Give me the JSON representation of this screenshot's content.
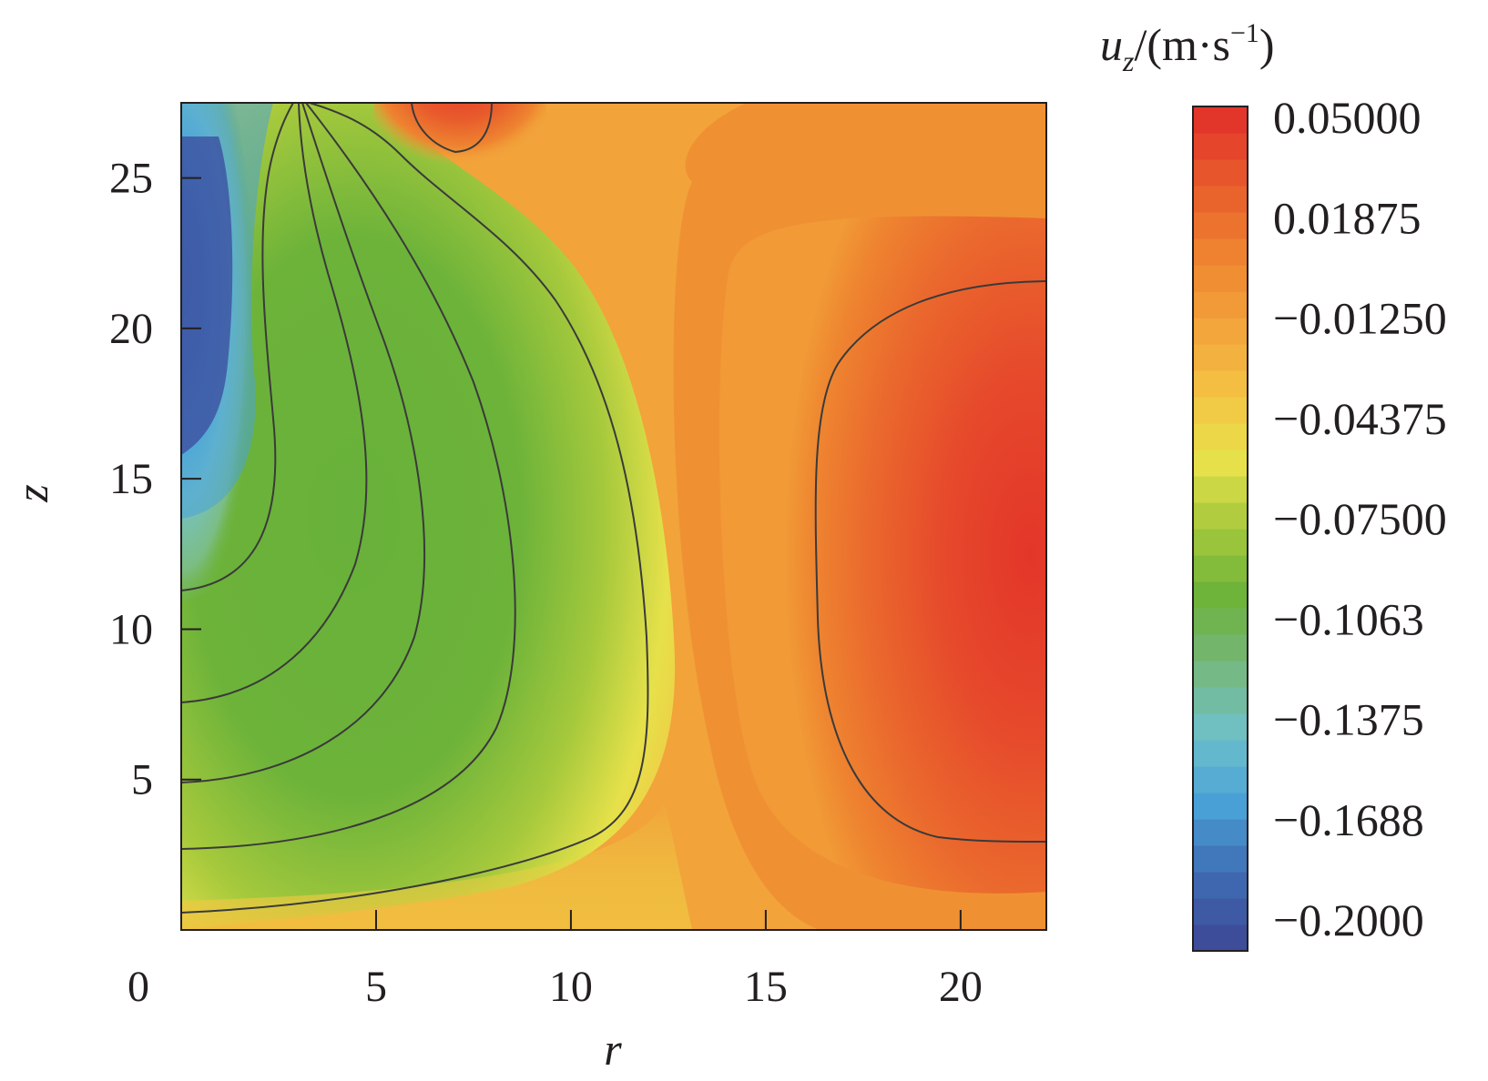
{
  "chart_data": {
    "type": "heatmap",
    "subtype": "filled-contour",
    "xlabel": "r",
    "ylabel": "z",
    "colorbar_title": {
      "var": "u",
      "sub": "z",
      "unit_open": "/(m·s",
      "exp": "−1",
      "unit_close": ")"
    },
    "xlim": [
      0,
      22.2
    ],
    "ylim": [
      0,
      27.5
    ],
    "x_ticks": [
      0,
      5,
      10,
      15,
      20
    ],
    "x_tick_labels": [
      "0",
      "5",
      "10",
      "15",
      "20"
    ],
    "y_ticks": [
      5,
      10,
      15,
      20,
      25
    ],
    "y_tick_labels": [
      "5",
      "10",
      "15",
      "20",
      "25"
    ],
    "colorbar": {
      "min": -0.2,
      "max": 0.05,
      "levels": 32,
      "labels": [
        "0.05000",
        "0.01875",
        "−0.01250",
        "−0.04375",
        "−0.07500",
        "−0.1063",
        "−0.1375",
        "−0.1688",
        "−0.2000"
      ],
      "colors": [
        "#3d4d9a",
        "#3f6eb5",
        "#4aa3d8",
        "#6fc0c8",
        "#76b87c",
        "#6cb23a",
        "#a4c83c",
        "#e8e24a",
        "#f4c244",
        "#f2a33a",
        "#ee8430",
        "#e85e2c",
        "#e3362a"
      ]
    },
    "field_features": [
      {
        "name": "downflow core near axis",
        "r": 0.6,
        "z": 21,
        "value": -0.19
      },
      {
        "name": "central downflow",
        "r": 5,
        "z": 12,
        "value": -0.08
      },
      {
        "name": "upflow cell near outer wall",
        "r": 21.5,
        "z": 11,
        "value": 0.045
      },
      {
        "name": "upflow spot near top",
        "r": 7.1,
        "z": 27.2,
        "value": 0.045
      },
      {
        "name": "background",
        "r": 14,
        "z": 20,
        "value": 0.0
      }
    ]
  }
}
